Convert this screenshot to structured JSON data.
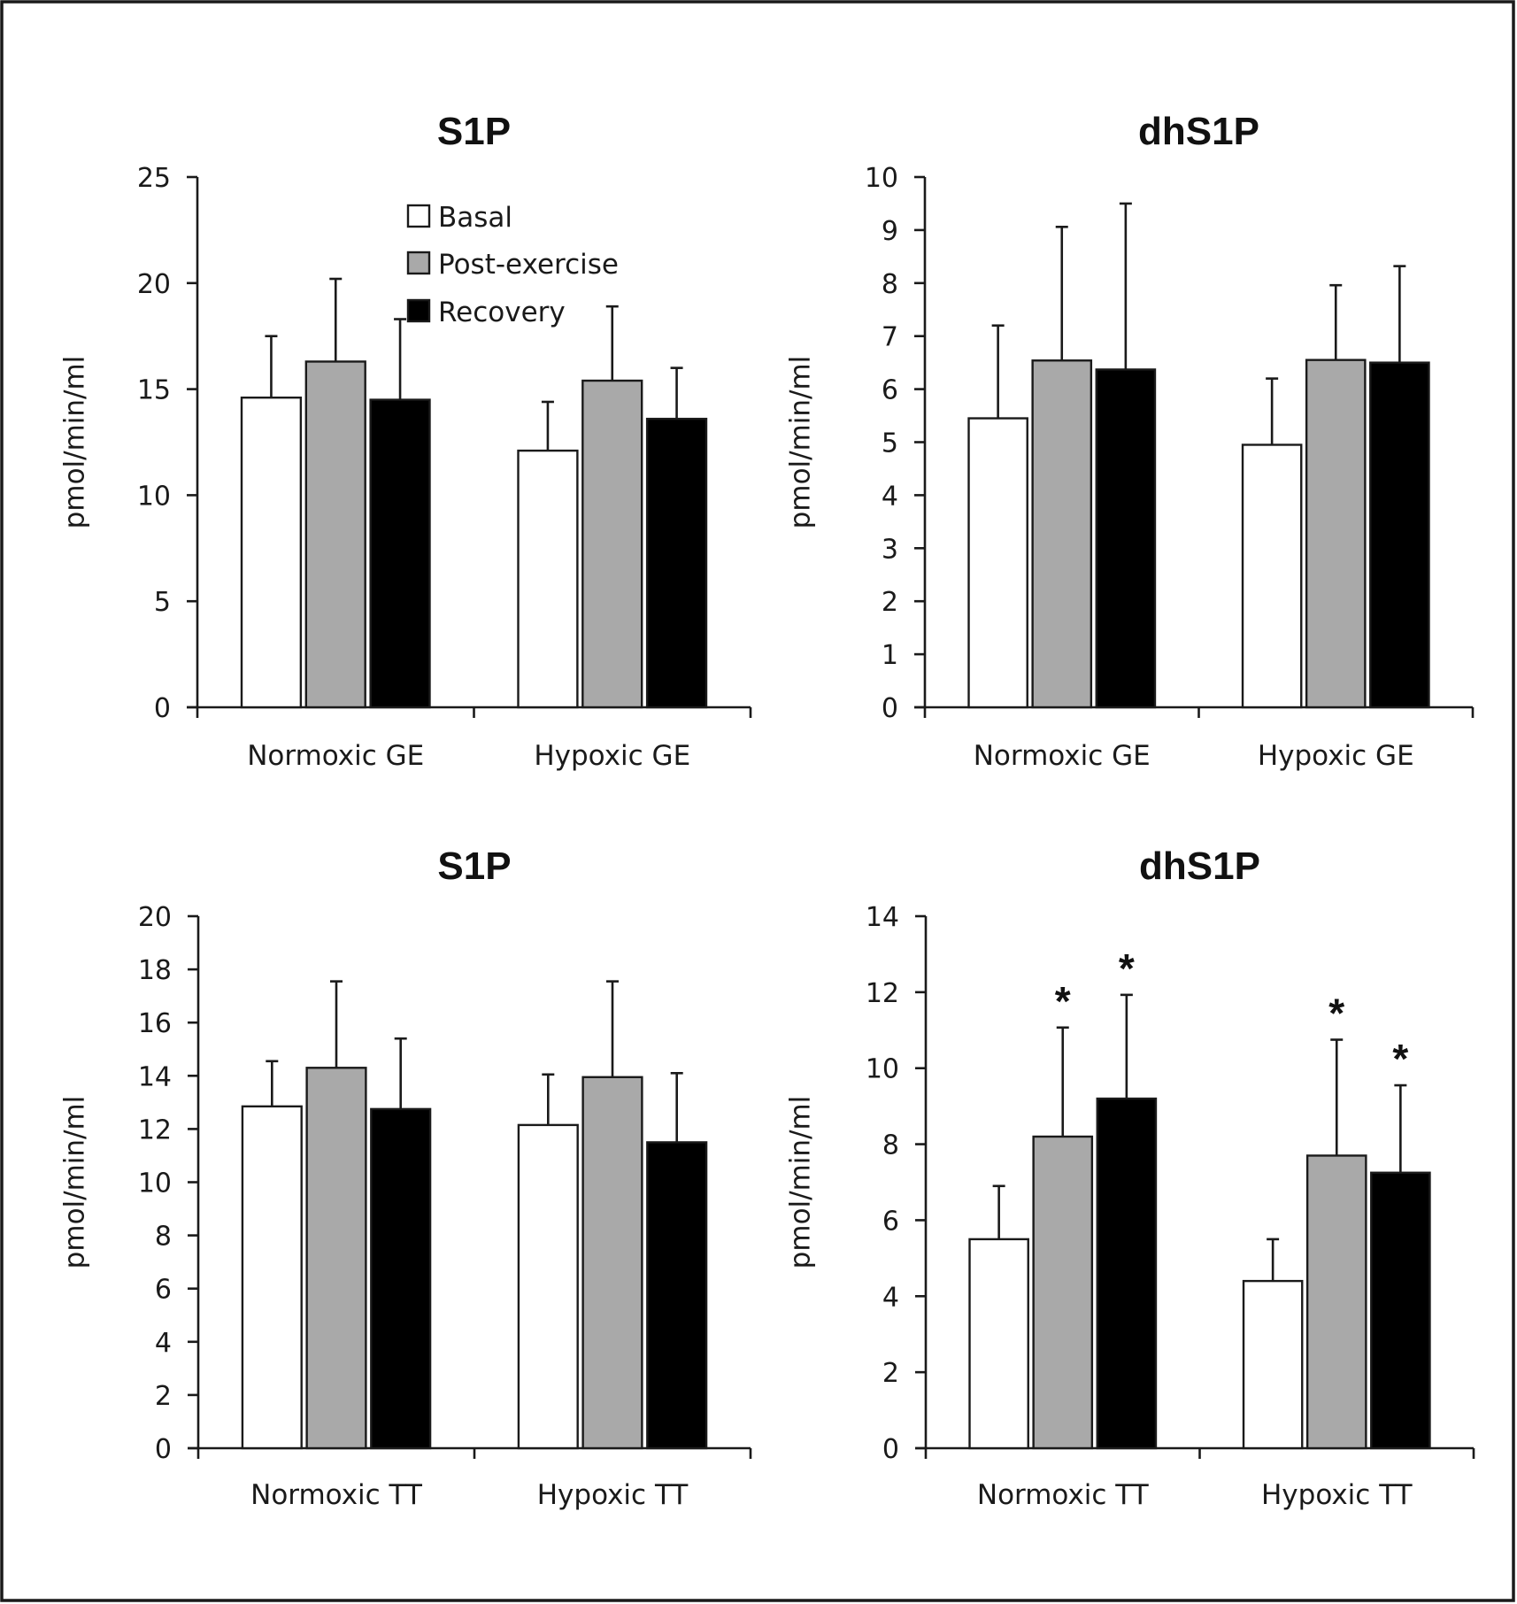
{
  "figure": {
    "legend": {
      "items": [
        {
          "label": "Basal",
          "color": "#ffffff"
        },
        {
          "label": "Post-exercise",
          "color": "#a9a9a9"
        },
        {
          "label": "Recovery",
          "color": "#000000"
        }
      ]
    }
  },
  "chart_data": [
    {
      "type": "bar",
      "title": "S1P",
      "xlabel": "",
      "ylabel": "pmol/min/ml",
      "ylim": [
        0,
        25
      ],
      "yticks": [
        0,
        5,
        10,
        15,
        20,
        25
      ],
      "categories": [
        "Normoxic GE",
        "Hypoxic GE"
      ],
      "legend": "top-center",
      "grid": false,
      "series": [
        {
          "name": "Basal",
          "values": [
            14.6,
            12.1
          ],
          "error": [
            2.9,
            2.3
          ],
          "significant": [
            false,
            false
          ]
        },
        {
          "name": "Post-exercise",
          "values": [
            16.3,
            15.4
          ],
          "error": [
            3.9,
            3.5
          ],
          "significant": [
            false,
            false
          ]
        },
        {
          "name": "Recovery",
          "values": [
            14.5,
            13.6
          ],
          "error": [
            3.8,
            2.4
          ],
          "significant": [
            false,
            false
          ]
        }
      ]
    },
    {
      "type": "bar",
      "title": "dhS1P",
      "xlabel": "",
      "ylabel": "pmol/min/ml",
      "ylim": [
        0,
        10
      ],
      "yticks": [
        0,
        1,
        2,
        3,
        4,
        5,
        6,
        7,
        8,
        9,
        10
      ],
      "categories": [
        "Normoxic GE",
        "Hypoxic GE"
      ],
      "grid": false,
      "series": [
        {
          "name": "Basal",
          "values": [
            5.45,
            4.95
          ],
          "error": [
            1.75,
            1.25
          ],
          "significant": [
            false,
            false
          ]
        },
        {
          "name": "Post-exercise",
          "values": [
            6.54,
            6.55
          ],
          "error": [
            2.52,
            1.41
          ],
          "significant": [
            false,
            false
          ]
        },
        {
          "name": "Recovery",
          "values": [
            6.37,
            6.5
          ],
          "error": [
            3.13,
            1.82
          ],
          "significant": [
            false,
            false
          ]
        }
      ]
    },
    {
      "type": "bar",
      "title": "S1P",
      "xlabel": "",
      "ylabel": "pmol/min/ml",
      "ylim": [
        0,
        20
      ],
      "yticks": [
        0,
        2,
        4,
        6,
        8,
        10,
        12,
        14,
        16,
        18,
        20
      ],
      "categories": [
        "Normoxic TT",
        "Hypoxic TT"
      ],
      "grid": false,
      "series": [
        {
          "name": "Basal",
          "values": [
            12.85,
            12.15
          ],
          "error": [
            1.7,
            1.9
          ],
          "significant": [
            false,
            false
          ]
        },
        {
          "name": "Post-exercise",
          "values": [
            14.3,
            13.95
          ],
          "error": [
            3.25,
            3.6
          ],
          "significant": [
            false,
            false
          ]
        },
        {
          "name": "Recovery",
          "values": [
            12.75,
            11.5
          ],
          "error": [
            2.65,
            2.6
          ],
          "significant": [
            false,
            false
          ]
        }
      ]
    },
    {
      "type": "bar",
      "title": "dhS1P",
      "xlabel": "",
      "ylabel": "pmol/min/ml",
      "ylim": [
        0,
        14
      ],
      "yticks": [
        0,
        2,
        4,
        6,
        8,
        10,
        12,
        14
      ],
      "categories": [
        "Normoxic TT",
        "Hypoxic TT"
      ],
      "grid": false,
      "annotation_symbol": "*",
      "series": [
        {
          "name": "Basal",
          "values": [
            5.5,
            4.4
          ],
          "error": [
            1.4,
            1.1
          ],
          "significant": [
            false,
            false
          ]
        },
        {
          "name": "Post-exercise",
          "values": [
            8.2,
            7.7
          ],
          "error": [
            2.87,
            3.05
          ],
          "significant": [
            true,
            true
          ]
        },
        {
          "name": "Recovery",
          "values": [
            9.2,
            7.25
          ],
          "error": [
            2.73,
            2.3
          ],
          "significant": [
            true,
            true
          ]
        }
      ]
    }
  ]
}
